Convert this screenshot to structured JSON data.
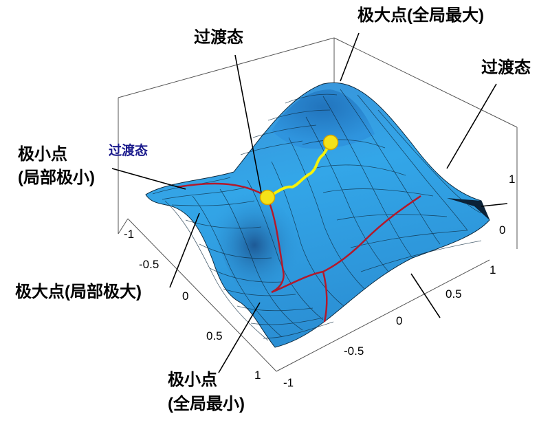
{
  "labels": {
    "global_max": "极大点(全局最大)",
    "transition_top": "过渡态",
    "transition_right": "过渡态",
    "local_min_line1": "极小点",
    "local_min_line2": "(局部极小)",
    "transition_small": "过渡态",
    "local_max": "极大点(局部极大)",
    "global_min_line1": "极小点",
    "global_min_line2": "(全局最小)"
  },
  "ticks": {
    "z": [
      "1",
      "0"
    ],
    "left_axis": [
      "-1",
      "-0.5",
      "0",
      "0.5",
      "1"
    ],
    "right_axis": [
      "1",
      "0.5",
      "0",
      "-0.5",
      "-1"
    ]
  },
  "colors": {
    "surface_light": "#5cc4f2",
    "surface_mid": "#2f9fe0",
    "surface_dark": "#1a5a9a",
    "mesh": "#0d2a3f",
    "red_path": "#b3192b",
    "yellow_path": "#f5f20a",
    "marker_fill": "#f5e218",
    "marker_stroke": "#d4a300"
  }
}
